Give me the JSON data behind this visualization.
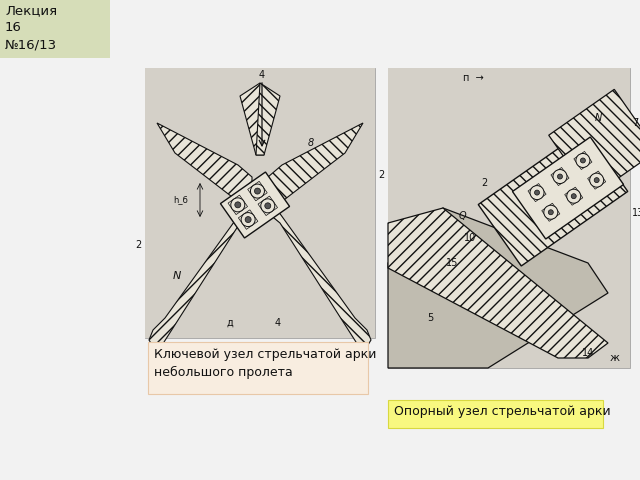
{
  "title_text": "Лекция\n16\n№16/13",
  "title_bg": "#d6ddb8",
  "page_bg": "#f2f2f2",
  "caption1_text": "Ключевой узел стрельчатой арки\nнебольшого пролета",
  "caption1_bg": "#f8ede0",
  "caption1_border": "#e8c8a8",
  "caption2_text": "Опорный узел стрельчатой арки",
  "caption2_bg": "#f8f880",
  "caption2_border": "#d8d840",
  "img1_bg": "#c8c4bc",
  "img2_bg": "#c8c4bc",
  "draw_bg": "#d4d0c8",
  "hatch_color": "#444444",
  "line_color": "#111111",
  "plate_color": "#e8e4d8",
  "bold_line": 1.2,
  "thin_line": 0.7
}
